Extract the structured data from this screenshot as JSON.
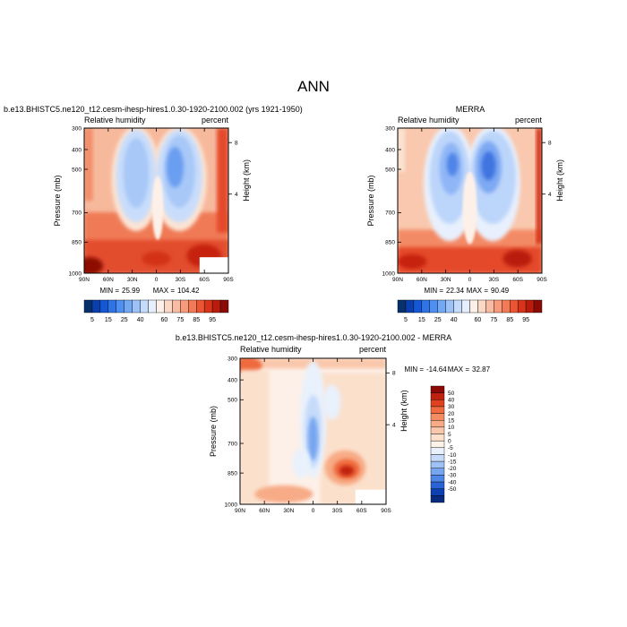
{
  "figure": {
    "title": "ANN",
    "min_label": "MIN =",
    "max_label": "MAX ="
  },
  "chart_data": [
    {
      "type": "heatmap",
      "panel": "test",
      "title": "b.e13.BHISTC5.ne120_t12.cesm-ihesp-hires1.0.30-1920-2100.002 (yrs 1921-1950)",
      "left_label": "Relative humidity",
      "right_label": "percent",
      "xlabel": "",
      "ylabel": "Pressure (mb)",
      "ylabel_right": "Height (km)",
      "x_ticks": [
        "90N",
        "60N",
        "30N",
        "0",
        "30S",
        "60S",
        "90S"
      ],
      "y_ticks": [
        "300",
        "400",
        "500",
        "700",
        "850",
        "1000"
      ],
      "y_ticks_right": [
        "8",
        "4"
      ],
      "ylim": [
        1000,
        300
      ],
      "min": "25.99",
      "max": "104.42",
      "colorbar": {
        "orientation": "horizontal",
        "labels": [
          "5",
          "15",
          "25",
          "40",
          "60",
          "75",
          "85",
          "95"
        ],
        "colors": [
          "#08306b",
          "#0a3fb0",
          "#1558d6",
          "#2f74e6",
          "#4f8ff0",
          "#73a8f5",
          "#9cc2f8",
          "#c4dbfb",
          "#e6effd",
          "#fdf0e8",
          "#fbd8c6",
          "#f9bca2",
          "#f69c7c",
          "#f27a56",
          "#ea5534",
          "#d93319",
          "#b91c0c",
          "#8c0a04"
        ]
      },
      "features": [
        "upper-tropospheric dry minima at 30N and 30S",
        "moist tropical upward branch at equator",
        "moist boundary layer near surface"
      ]
    },
    {
      "type": "heatmap",
      "panel": "reference",
      "title": "MERRA",
      "left_label": "Relative humidity",
      "right_label": "percent",
      "xlabel": "",
      "ylabel": "Pressure (mb)",
      "ylabel_right": "Height (km)",
      "x_ticks": [
        "90N",
        "60N",
        "30N",
        "0",
        "30S",
        "60S",
        "90S"
      ],
      "y_ticks": [
        "300",
        "400",
        "500",
        "700",
        "850",
        "1000"
      ],
      "y_ticks_right": [
        "8",
        "4"
      ],
      "ylim": [
        1000,
        300
      ],
      "min": "22.34",
      "max": "90.49",
      "colorbar": {
        "orientation": "horizontal",
        "labels": [
          "5",
          "15",
          "25",
          "40",
          "60",
          "75",
          "85",
          "95"
        ],
        "colors": [
          "#08306b",
          "#0a3fb0",
          "#1558d6",
          "#2f74e6",
          "#4f8ff0",
          "#73a8f5",
          "#9cc2f8",
          "#c4dbfb",
          "#e6effd",
          "#fdf0e8",
          "#fbd8c6",
          "#f9bca2",
          "#f69c7c",
          "#f27a56",
          "#ea5534",
          "#d93319",
          "#b91c0c",
          "#8c0a04"
        ]
      },
      "features": [
        "upper-tropospheric dry minima at 30N and 30S",
        "moist tropical upward branch at equator",
        "moist boundary layer near surface"
      ]
    },
    {
      "type": "heatmap",
      "panel": "difference",
      "title": "b.e13.BHISTC5.ne120_t12.cesm-ihesp-hires1.0.30-1920-2100.002 - MERRA",
      "left_label": "Relative humidity",
      "right_label": "percent",
      "xlabel": "",
      "ylabel": "Pressure (mb)",
      "ylabel_right": "Height (km)",
      "x_ticks": [
        "90N",
        "60N",
        "30N",
        "0",
        "30S",
        "60S",
        "90S"
      ],
      "y_ticks": [
        "300",
        "400",
        "500",
        "700",
        "850",
        "1000"
      ],
      "y_ticks_right": [
        "8",
        "4"
      ],
      "ylim": [
        1000,
        300
      ],
      "min": "-14.64",
      "max": "32.87",
      "colorbar": {
        "orientation": "vertical",
        "labels": [
          "50",
          "40",
          "30",
          "20",
          "15",
          "10",
          "5",
          "0",
          "-5",
          "-10",
          "-15",
          "-20",
          "-30",
          "-40",
          "-50"
        ],
        "colors": [
          "#8c0a04",
          "#c0200e",
          "#e0421f",
          "#ef6a3e",
          "#f48c62",
          "#f7ab86",
          "#f9c7ab",
          "#fbe0cc",
          "#fdf2e8",
          "#e9f1fc",
          "#c6dbfa",
          "#9fc2f6",
          "#77a6f0",
          "#4f87e6",
          "#2a63d6",
          "#0c3fb2",
          "#062a80"
        ]
      },
      "features": [
        "negative core along equator 500-700 mb",
        "positive maximum near 45S 850 mb",
        "positive band near 30N surface"
      ]
    }
  ]
}
